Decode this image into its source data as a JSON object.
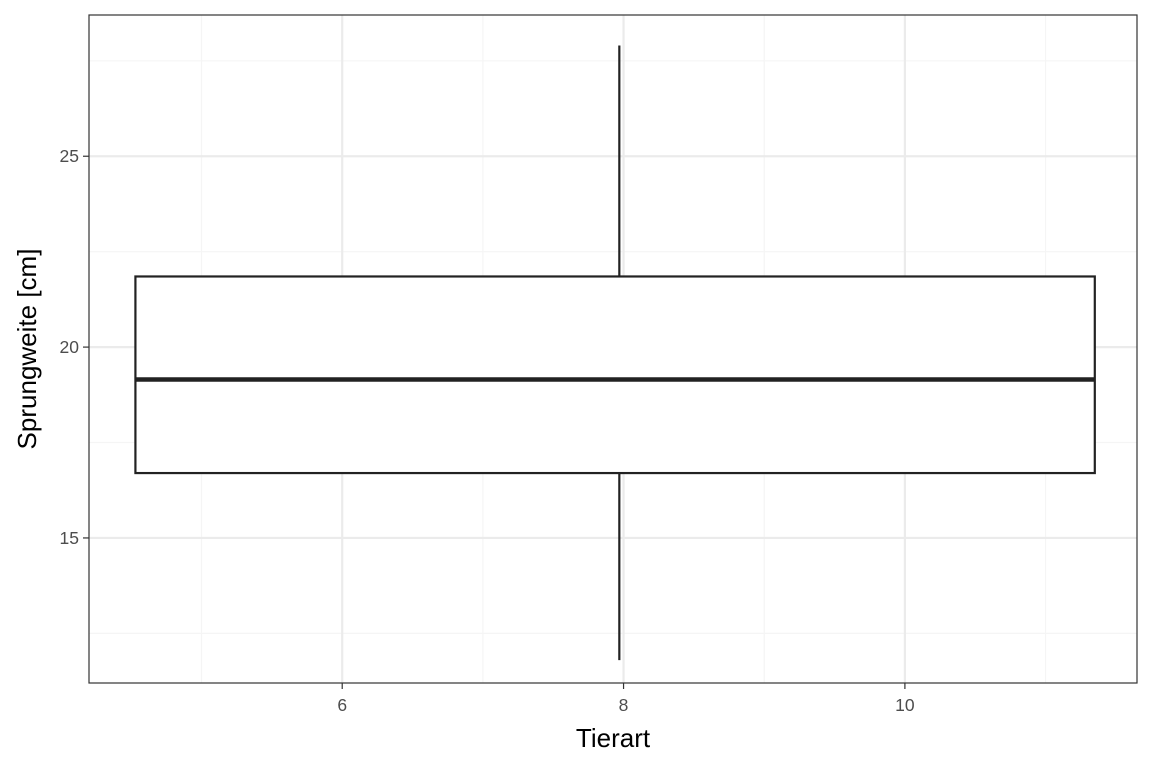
{
  "chart_data": {
    "type": "boxplot",
    "title": "",
    "xlabel": "Tierart",
    "ylabel": "Sprungweite [cm]",
    "xlim": [
      4.2,
      11.65
    ],
    "ylim": [
      11.2,
      28.7
    ],
    "x_ticks": [
      6,
      8,
      10
    ],
    "x_minor_ticks": [
      5,
      7,
      9,
      11
    ],
    "y_ticks": [
      15,
      20,
      25
    ],
    "y_minor_ticks": [
      12.5,
      17.5,
      22.5,
      27.5
    ],
    "grid": true,
    "legend": "none",
    "boxes": [
      {
        "x": 7.97,
        "x_min": 4.53,
        "x_max": 11.35,
        "whisker_low": 11.8,
        "q1": 16.7,
        "median": 19.15,
        "q3": 21.85,
        "whisker_high": 27.9
      }
    ],
    "colors": {
      "box_fill": "#ffffff",
      "box_line": "#222222",
      "grid_major": "#ebebeb",
      "grid_minor": "#f5f5f5",
      "panel_border": "#333333",
      "tick_text": "#4d4d4d"
    }
  }
}
